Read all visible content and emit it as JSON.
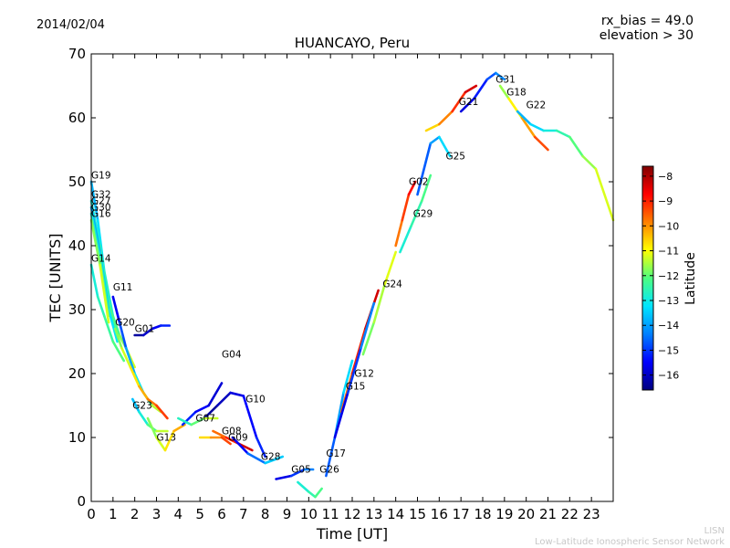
{
  "chart_data": {
    "type": "scatter",
    "title": "HUANCAYO, Peru",
    "date": "2014/02/04",
    "rx_bias": "rx_bias = 49.0",
    "elevation": "elevation > 30",
    "xlabel": "Time [UT]",
    "ylabel": "TEC [UNITS]",
    "xlim": [
      0,
      24
    ],
    "ylim": [
      0,
      70
    ],
    "xticks": [
      0,
      1,
      2,
      3,
      4,
      5,
      6,
      7,
      8,
      9,
      10,
      11,
      12,
      13,
      14,
      15,
      16,
      17,
      18,
      19,
      20,
      21,
      22,
      23
    ],
    "yticks": [
      0,
      10,
      20,
      30,
      40,
      50,
      60,
      70
    ],
    "grid": false,
    "colorbar": {
      "label": "Latitude",
      "range": [
        -16.6,
        -7.6
      ],
      "ticks": [
        -16,
        -15,
        -14,
        -13,
        -12,
        -11,
        -10,
        -9,
        -8
      ],
      "tick_labels": [
        "−16",
        "−15",
        "−14",
        "−13",
        "−12",
        "−11",
        "−10",
        "−9",
        "−8"
      ],
      "colormap": [
        "#00007f",
        "#0000ff",
        "#0080ff",
        "#00e5ff",
        "#4dff80",
        "#ffff00",
        "#ff8000",
        "#ff0000",
        "#7f0000"
      ]
    },
    "series": [
      {
        "name": "G19",
        "label_at": [
          0.0,
          50.5
        ],
        "points": [
          [
            0.0,
            50
          ],
          [
            0.3,
            44
          ],
          [
            0.6,
            36
          ],
          [
            1.0,
            29
          ],
          [
            1.3,
            26
          ],
          [
            1.6,
            24
          ],
          [
            2.0,
            21
          ]
        ],
        "lat_range": [
          -14,
          -11
        ]
      },
      {
        "name": "G32",
        "label_at": [
          0.0,
          47.5
        ],
        "points": [
          [
            0.0,
            47
          ],
          [
            0.4,
            40
          ],
          [
            0.8,
            31
          ],
          [
            1.2,
            26
          ]
        ],
        "lat_range": [
          -13,
          -12
        ]
      },
      {
        "name": "G27",
        "label_at": [
          0.0,
          46.5
        ],
        "points": [
          [
            0.0,
            46
          ],
          [
            0.4,
            39
          ],
          [
            0.8,
            30
          ],
          [
            1.2,
            25
          ]
        ],
        "lat_range": [
          -14,
          -13
        ]
      },
      {
        "name": "G30",
        "label_at": [
          0.0,
          45.5
        ],
        "points": [
          [
            0.0,
            45
          ],
          [
            0.4,
            38
          ],
          [
            0.8,
            29
          ]
        ],
        "lat_range": [
          -13,
          -12
        ]
      },
      {
        "name": "G16",
        "label_at": [
          0.0,
          44.5
        ],
        "points": [
          [
            0.0,
            44
          ],
          [
            0.4,
            37
          ],
          [
            0.8,
            28
          ]
        ],
        "lat_range": [
          -12,
          -11
        ]
      },
      {
        "name": "G14",
        "label_at": [
          0.0,
          37.5
        ],
        "points": [
          [
            0.0,
            37
          ],
          [
            0.3,
            32
          ],
          [
            0.6,
            29
          ],
          [
            1.0,
            25
          ],
          [
            1.5,
            22
          ]
        ],
        "lat_range": [
          -13,
          -12
        ]
      },
      {
        "name": "G11",
        "label_at": [
          1.0,
          33.0
        ],
        "points": [
          [
            1.0,
            32
          ],
          [
            1.3,
            28
          ],
          [
            1.6,
            24
          ],
          [
            2.0,
            20
          ],
          [
            2.4,
            17
          ],
          [
            2.8,
            15
          ],
          [
            3.2,
            14
          ]
        ],
        "lat_range": [
          -16,
          -11
        ]
      },
      {
        "name": "G20",
        "label_at": [
          1.1,
          27.5
        ],
        "points": [
          [
            1.1,
            27
          ],
          [
            1.4,
            24
          ],
          [
            1.8,
            21
          ],
          [
            2.2,
            18
          ],
          [
            2.6,
            16
          ],
          [
            3.0,
            15
          ],
          [
            3.5,
            13
          ]
        ],
        "lat_range": [
          -12,
          -9
        ]
      },
      {
        "name": "G01",
        "label_at": [
          2.0,
          26.5
        ],
        "points": [
          [
            2.0,
            26
          ],
          [
            2.4,
            26
          ],
          [
            2.8,
            27
          ],
          [
            3.2,
            27.5
          ],
          [
            3.6,
            27.5
          ]
        ],
        "lat_range": [
          -16.5,
          -15
        ]
      },
      {
        "name": "G23",
        "label_at": [
          1.9,
          14.5
        ],
        "points": [
          [
            1.9,
            16
          ],
          [
            2.2,
            14
          ],
          [
            2.6,
            12
          ],
          [
            3.0,
            11
          ],
          [
            3.5,
            11
          ]
        ],
        "lat_range": [
          -14,
          -11
        ]
      },
      {
        "name": "G13",
        "label_at": [
          3.0,
          9.5
        ],
        "points": [
          [
            2.6,
            13
          ],
          [
            3.0,
            10
          ],
          [
            3.4,
            8
          ],
          [
            3.8,
            11
          ],
          [
            4.3,
            12
          ]
        ],
        "lat_range": [
          -12,
          -10
        ]
      },
      {
        "name": "G04",
        "label_at": [
          6.0,
          22.5
        ],
        "points": [
          [
            4.2,
            12
          ],
          [
            4.8,
            14
          ],
          [
            5.4,
            15
          ],
          [
            6.0,
            18.5
          ]
        ],
        "lat_range": [
          -15,
          -16
        ]
      },
      {
        "name": "G10",
        "label_at": [
          7.1,
          15.5
        ],
        "points": [
          [
            5.2,
            13
          ],
          [
            5.8,
            15
          ],
          [
            6.4,
            17
          ],
          [
            7.0,
            16.5
          ],
          [
            7.6,
            10
          ],
          [
            8.0,
            7
          ]
        ],
        "lat_range": [
          -16.5,
          -15
        ]
      },
      {
        "name": "G07",
        "label_at": [
          4.8,
          12.5
        ],
        "points": [
          [
            4.0,
            13
          ],
          [
            4.6,
            12
          ],
          [
            5.2,
            13
          ],
          [
            5.8,
            13
          ]
        ],
        "lat_range": [
          -13,
          -11
        ]
      },
      {
        "name": "G08",
        "label_at": [
          6.0,
          10.5
        ],
        "points": [
          [
            5.0,
            10
          ],
          [
            5.5,
            10
          ],
          [
            6.0,
            10
          ],
          [
            6.4,
            9
          ]
        ],
        "lat_range": [
          -11,
          -9
        ]
      },
      {
        "name": "G09",
        "label_at": [
          6.3,
          9.5
        ],
        "points": [
          [
            5.6,
            11
          ],
          [
            6.2,
            10
          ],
          [
            6.8,
            9
          ],
          [
            7.4,
            8
          ]
        ],
        "lat_range": [
          -10,
          -8
        ]
      },
      {
        "name": "G28",
        "label_at": [
          7.8,
          6.5
        ],
        "points": [
          [
            6.5,
            10
          ],
          [
            7.2,
            7.5
          ],
          [
            8.0,
            6
          ],
          [
            8.8,
            7
          ]
        ],
        "lat_range": [
          -16,
          -13
        ]
      },
      {
        "name": "G05",
        "label_at": [
          9.2,
          4.5
        ],
        "points": [
          [
            8.5,
            3.5
          ],
          [
            9.2,
            4
          ],
          [
            9.8,
            5
          ],
          [
            10.2,
            5
          ]
        ],
        "lat_range": [
          -16,
          -14
        ]
      },
      {
        "name": "G26",
        "label_at": [
          10.5,
          4.5
        ],
        "points": [
          [
            9.5,
            3
          ],
          [
            10.0,
            1.5
          ],
          [
            10.3,
            0.7
          ],
          [
            10.6,
            2
          ]
        ],
        "lat_range": [
          -13,
          -12
        ]
      },
      {
        "name": "G17",
        "label_at": [
          10.8,
          7.0
        ],
        "points": [
          [
            10.8,
            4
          ],
          [
            11.2,
            10
          ],
          [
            11.6,
            17
          ],
          [
            12.0,
            22
          ]
        ],
        "lat_range": [
          -15,
          -13
        ]
      },
      {
        "name": "G12",
        "label_at": [
          12.1,
          19.5
        ],
        "points": [
          [
            11.5,
            14
          ],
          [
            12.0,
            20
          ],
          [
            12.6,
            27
          ],
          [
            13.2,
            33
          ]
        ],
        "lat_range": [
          -10,
          -8
        ]
      },
      {
        "name": "G15",
        "label_at": [
          11.7,
          17.5
        ],
        "points": [
          [
            11.2,
            10
          ],
          [
            11.8,
            17
          ],
          [
            12.4,
            24
          ],
          [
            13.0,
            31
          ]
        ],
        "lat_range": [
          -16,
          -14
        ]
      },
      {
        "name": "G24",
        "label_at": [
          13.4,
          33.5
        ],
        "points": [
          [
            12.5,
            23
          ],
          [
            13.0,
            28
          ],
          [
            13.5,
            34
          ],
          [
            14.0,
            39
          ]
        ],
        "lat_range": [
          -12,
          -11
        ]
      },
      {
        "name": "G02",
        "label_at": [
          14.6,
          49.5
        ],
        "points": [
          [
            14.0,
            40
          ],
          [
            14.3,
            44
          ],
          [
            14.6,
            48
          ],
          [
            14.9,
            50
          ]
        ],
        "lat_range": [
          -10,
          -8.5
        ]
      },
      {
        "name": "G29",
        "label_at": [
          14.8,
          44.5
        ],
        "points": [
          [
            14.2,
            39
          ],
          [
            14.7,
            43
          ],
          [
            15.2,
            47
          ],
          [
            15.6,
            51
          ]
        ],
        "lat_range": [
          -13,
          -12
        ]
      },
      {
        "name": "G25",
        "label_at": [
          16.3,
          53.5
        ],
        "points": [
          [
            15.0,
            48
          ],
          [
            15.6,
            56
          ],
          [
            16.0,
            57
          ],
          [
            16.5,
            54
          ]
        ],
        "lat_range": [
          -15,
          -13
        ]
      },
      {
        "name": "G21",
        "label_at": [
          16.9,
          62.0
        ],
        "points": [
          [
            15.4,
            58
          ],
          [
            16.0,
            59
          ],
          [
            16.6,
            61
          ],
          [
            17.2,
            64
          ],
          [
            17.7,
            65
          ]
        ],
        "lat_range": [
          -11,
          -8
        ]
      },
      {
        "name": "G31",
        "label_at": [
          18.6,
          65.5
        ],
        "points": [
          [
            17.0,
            61
          ],
          [
            17.6,
            63
          ],
          [
            18.2,
            66
          ],
          [
            18.6,
            67
          ],
          [
            19.0,
            66
          ]
        ],
        "lat_range": [
          -16,
          -14
        ]
      },
      {
        "name": "G18",
        "label_at": [
          19.1,
          63.5
        ],
        "points": [
          [
            18.8,
            65
          ],
          [
            19.2,
            63
          ],
          [
            19.8,
            60
          ],
          [
            20.4,
            57
          ],
          [
            21.0,
            55
          ]
        ],
        "lat_range": [
          -12,
          -9
        ]
      },
      {
        "name": "G22",
        "label_at": [
          20.0,
          61.5
        ],
        "points": [
          [
            19.6,
            61
          ],
          [
            20.2,
            59
          ],
          [
            20.8,
            58
          ],
          [
            21.4,
            58
          ],
          [
            22.0,
            57
          ],
          [
            22.6,
            54
          ],
          [
            23.2,
            52
          ],
          [
            24.0,
            44
          ]
        ],
        "lat_range": [
          -14,
          -11
        ]
      }
    ]
  },
  "footer": {
    "line1": "LISN",
    "line2": "Low-Latitude Ionospheric Sensor Network"
  }
}
